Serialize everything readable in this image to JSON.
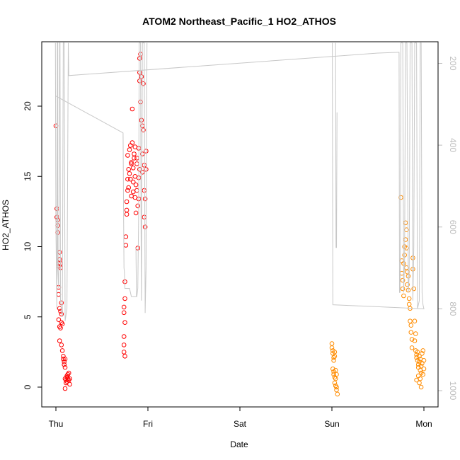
{
  "chart_data": {
    "type": "scatter",
    "title": "ATOM2 Northeast_Pacific_1 HO2_ATHOS",
    "xlabel": "Date",
    "ylabel": "HO2_ATHOS",
    "x_ticks": [
      "Thu",
      "Fri",
      "Sat",
      "Sun",
      "Mon"
    ],
    "xlim_days": [
      -0.2,
      4.2
    ],
    "y_ticks": [
      0,
      5,
      10,
      15,
      20
    ],
    "ylim": [
      -1.4,
      24.5
    ],
    "right_axis": {
      "ticks": [
        200,
        400,
        600,
        800,
        1000
      ],
      "range": [
        175,
        1060
      ],
      "reversed": true
    },
    "grid": false,
    "colors": {
      "series_1": "#ff0000",
      "series_2": "#ff8c00",
      "altitude_line": "#c8c8c8"
    },
    "series": [
      {
        "points": [
          [
            0.0,
            18.6
          ],
          [
            0.01,
            12.7
          ],
          [
            0.01,
            12.1
          ],
          [
            0.02,
            11.5
          ],
          [
            0.02,
            11.9
          ],
          [
            0.02,
            11.0
          ],
          [
            0.03,
            8.8
          ],
          [
            0.03,
            8.6
          ],
          [
            0.04,
            9.6
          ],
          [
            0.04,
            9.1
          ],
          [
            0.05,
            8.5
          ],
          [
            0.05,
            8.8
          ],
          [
            0.03,
            7.1
          ],
          [
            0.03,
            6.6
          ],
          [
            0.04,
            5.6
          ],
          [
            0.05,
            5.4
          ],
          [
            0.06,
            6.0
          ],
          [
            0.06,
            5.2
          ],
          [
            0.03,
            4.8
          ],
          [
            0.04,
            4.3
          ],
          [
            0.05,
            4.2
          ],
          [
            0.06,
            4.6
          ],
          [
            0.07,
            4.5
          ],
          [
            0.04,
            3.3
          ],
          [
            0.06,
            3.0
          ],
          [
            0.07,
            2.6
          ],
          [
            0.08,
            2.2
          ],
          [
            0.08,
            2.0
          ],
          [
            0.09,
            1.8
          ],
          [
            0.09,
            1.6
          ],
          [
            0.1,
            1.4
          ],
          [
            0.1,
            2.0
          ],
          [
            0.1,
            0.6
          ],
          [
            0.11,
            0.5
          ],
          [
            0.11,
            0.3
          ],
          [
            0.12,
            0.7
          ],
          [
            0.12,
            0.4
          ],
          [
            0.13,
            0.6
          ],
          [
            0.13,
            0.9
          ],
          [
            0.14,
            1.0
          ],
          [
            0.14,
            0.5
          ],
          [
            0.15,
            0.6
          ],
          [
            0.15,
            0.2
          ],
          [
            0.1,
            -0.1
          ],
          [
            0.12,
            0.8
          ],
          [
            0.74,
            3.6
          ],
          [
            0.74,
            3.0
          ],
          [
            0.74,
            2.5
          ],
          [
            0.75,
            2.2
          ],
          [
            0.74,
            5.7
          ],
          [
            0.74,
            5.3
          ],
          [
            0.75,
            4.6
          ],
          [
            0.75,
            6.3
          ],
          [
            0.75,
            7.5
          ],
          [
            0.76,
            10.1
          ],
          [
            0.76,
            10.7
          ],
          [
            0.77,
            12.6
          ],
          [
            0.77,
            12.3
          ],
          [
            0.77,
            13.2
          ],
          [
            0.78,
            14.0
          ],
          [
            0.78,
            14.8
          ],
          [
            0.78,
            16.5
          ],
          [
            0.79,
            15.5
          ],
          [
            0.79,
            14.2
          ],
          [
            0.8,
            16.9
          ],
          [
            0.8,
            15.2
          ],
          [
            0.81,
            14.8
          ],
          [
            0.81,
            17.2
          ],
          [
            0.82,
            16.0
          ],
          [
            0.82,
            13.6
          ],
          [
            0.82,
            15.9
          ],
          [
            0.83,
            19.8
          ],
          [
            0.83,
            17.4
          ],
          [
            0.84,
            15.6
          ],
          [
            0.84,
            13.9
          ],
          [
            0.84,
            14.6
          ],
          [
            0.85,
            16.3
          ],
          [
            0.85,
            16.6
          ],
          [
            0.86,
            15.0
          ],
          [
            0.86,
            13.5
          ],
          [
            0.86,
            17.1
          ],
          [
            0.87,
            14.4
          ],
          [
            0.87,
            12.4
          ],
          [
            0.88,
            15.9
          ],
          [
            0.88,
            14.0
          ],
          [
            0.88,
            16.3
          ],
          [
            0.89,
            9.9
          ],
          [
            0.89,
            12.9
          ],
          [
            0.9,
            13.4
          ],
          [
            0.9,
            14.9
          ],
          [
            0.9,
            17.0
          ],
          [
            0.91,
            15.5
          ],
          [
            0.91,
            21.8
          ],
          [
            0.91,
            22.4
          ],
          [
            0.91,
            23.4
          ],
          [
            0.92,
            23.7
          ],
          [
            0.92,
            20.3
          ],
          [
            0.93,
            22.1
          ],
          [
            0.93,
            19.0
          ],
          [
            0.94,
            15.3
          ],
          [
            0.94,
            16.6
          ],
          [
            0.94,
            18.6
          ],
          [
            0.95,
            21.6
          ],
          [
            0.95,
            18.3
          ],
          [
            0.96,
            15.8
          ],
          [
            0.96,
            14.0
          ],
          [
            0.96,
            12.1
          ],
          [
            0.97,
            11.4
          ],
          [
            0.97,
            13.4
          ],
          [
            0.98,
            15.5
          ],
          [
            0.98,
            16.8
          ]
        ]
      },
      {
        "points": [
          [
            3.0,
            3.1
          ],
          [
            3.0,
            2.8
          ],
          [
            3.01,
            2.6
          ],
          [
            3.01,
            2.4
          ],
          [
            3.02,
            2.1
          ],
          [
            3.02,
            1.9
          ],
          [
            3.03,
            2.5
          ],
          [
            3.03,
            2.2
          ],
          [
            3.01,
            1.3
          ],
          [
            3.02,
            1.1
          ],
          [
            3.02,
            0.9
          ],
          [
            3.03,
            0.7
          ],
          [
            3.03,
            0.3
          ],
          [
            3.04,
            0.6
          ],
          [
            3.04,
            0.1
          ],
          [
            3.05,
            0.0
          ],
          [
            3.05,
            -0.2
          ],
          [
            3.06,
            -0.5
          ],
          [
            3.05,
            0.9
          ],
          [
            3.04,
            1.2
          ],
          [
            3.75,
            13.5
          ],
          [
            3.76,
            9.0
          ],
          [
            3.76,
            8.1
          ],
          [
            3.77,
            7.6
          ],
          [
            3.77,
            7.0
          ],
          [
            3.78,
            6.5
          ],
          [
            3.78,
            8.8
          ],
          [
            3.79,
            9.4
          ],
          [
            3.79,
            10.0
          ],
          [
            3.8,
            11.7
          ],
          [
            3.8,
            10.5
          ],
          [
            3.81,
            11.2
          ],
          [
            3.81,
            9.9
          ],
          [
            3.81,
            8.5
          ],
          [
            3.82,
            8.2
          ],
          [
            3.82,
            7.3
          ],
          [
            3.83,
            7.9
          ],
          [
            3.83,
            6.9
          ],
          [
            3.84,
            6.3
          ],
          [
            3.84,
            5.9
          ],
          [
            3.85,
            5.6
          ],
          [
            3.85,
            4.7
          ],
          [
            3.86,
            4.4
          ],
          [
            3.86,
            3.9
          ],
          [
            3.87,
            3.4
          ],
          [
            3.87,
            2.8
          ],
          [
            3.88,
            9.2
          ],
          [
            3.88,
            8.4
          ],
          [
            3.89,
            7.0
          ],
          [
            3.9,
            4.7
          ],
          [
            3.9,
            3.3
          ],
          [
            3.91,
            3.8
          ],
          [
            3.91,
            2.6
          ],
          [
            3.92,
            2.3
          ],
          [
            3.92,
            2.1
          ],
          [
            3.93,
            2.5
          ],
          [
            3.93,
            1.9
          ],
          [
            3.94,
            1.6
          ],
          [
            3.94,
            1.4
          ],
          [
            3.95,
            2.2
          ],
          [
            3.95,
            1.8
          ],
          [
            3.96,
            1.2
          ],
          [
            3.96,
            2.0
          ],
          [
            3.97,
            1.5
          ],
          [
            3.97,
            1.0
          ],
          [
            3.98,
            2.4
          ],
          [
            3.98,
            1.7
          ],
          [
            3.99,
            0.9
          ],
          [
            3.99,
            2.6
          ],
          [
            4.0,
            1.9
          ],
          [
            4.0,
            1.3
          ],
          [
            3.94,
            0.8
          ],
          [
            3.96,
            0.6
          ],
          [
            3.97,
            0.0
          ],
          [
            3.92,
            0.5
          ],
          [
            3.95,
            0.3
          ]
        ]
      }
    ],
    "altitude_line": [
      [
        -0.005,
        150
      ],
      [
        0.0,
        600
      ],
      [
        0.01,
        800
      ],
      [
        0.015,
        150
      ],
      [
        0.02,
        150
      ],
      [
        0.02,
        700
      ],
      [
        0.03,
        750
      ],
      [
        0.04,
        150
      ],
      [
        0.045,
        150
      ],
      [
        0.05,
        780
      ],
      [
        0.07,
        820
      ],
      [
        0.08,
        150
      ],
      [
        0.09,
        150
      ],
      [
        0.1,
        830
      ],
      [
        0.12,
        800
      ],
      [
        0.135,
        150
      ],
      [
        0.14,
        230
      ],
      [
        3.5,
        175
      ],
      [
        3.73,
        173
      ],
      [
        3.735,
        760
      ],
      [
        3.74,
        760
      ],
      [
        3.745,
        620
      ],
      [
        3.75,
        150
      ],
      [
        3.77,
        150
      ],
      [
        3.78,
        760
      ],
      [
        3.79,
        680
      ],
      [
        3.8,
        150
      ],
      [
        3.815,
        150
      ],
      [
        3.83,
        760
      ],
      [
        3.84,
        720
      ],
      [
        3.85,
        150
      ],
      [
        3.87,
        150
      ],
      [
        3.88,
        780
      ],
      [
        3.89,
        650
      ],
      [
        3.9,
        150
      ],
      [
        3.92,
        150
      ],
      [
        3.93,
        800
      ],
      [
        3.95,
        780
      ],
      [
        3.96,
        150
      ],
      [
        3.97,
        150
      ],
      [
        3.98,
        760
      ],
      [
        3.99,
        790
      ],
      [
        4.0,
        800
      ],
      [
        3.01,
        790
      ],
      [
        3.005,
        150
      ]
    ],
    "altitude_line_2": [
      [
        0.0,
        280
      ],
      [
        0.73,
        370
      ],
      [
        0.735,
        560
      ],
      [
        0.74,
        700
      ],
      [
        0.745,
        710
      ],
      [
        0.75,
        750
      ],
      [
        0.78,
        750
      ],
      [
        0.8,
        750
      ],
      [
        0.82,
        770
      ],
      [
        0.86,
        770
      ],
      [
        0.88,
        770
      ],
      [
        0.89,
        750
      ],
      [
        0.9,
        560
      ],
      [
        0.905,
        150
      ],
      [
        0.92,
        150
      ],
      [
        0.925,
        600
      ],
      [
        0.93,
        780
      ],
      [
        0.94,
        150
      ],
      [
        0.96,
        150
      ],
      [
        0.97,
        810
      ],
      [
        0.98,
        700
      ],
      [
        0.99,
        150
      ]
    ],
    "altitude_line_3": [
      [
        3.04,
        150
      ],
      [
        3.045,
        650
      ],
      [
        3.05,
        650
      ],
      [
        3.055,
        320
      ]
    ],
    "altitude_line_4": [
      [
        0.87,
        650
      ],
      [
        0.875,
        770
      ]
    ]
  }
}
